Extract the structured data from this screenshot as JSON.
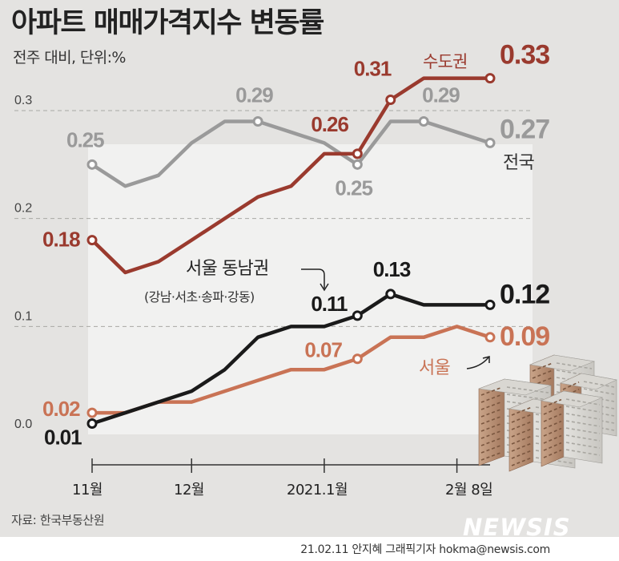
{
  "header": {
    "title_light_a": "아파트 ",
    "title_bold": "매매가격지수",
    "title_light_b": " 변동률",
    "subtitle": "전주 대비, 단위:%"
  },
  "footer": {
    "source": "자료: 한국부동산원",
    "credit": "21.02.11 안지혜 그래픽기자 hokma@newsis.com",
    "watermark": "NEWSIS"
  },
  "colors": {
    "capital": "#9a3a2e",
    "nation": "#9a9a9a",
    "gangnam": "#1a1a1a",
    "seoul": "#c97355",
    "background": "#e4e3e1",
    "plot_area": "#f1f1f0"
  },
  "chart_data": {
    "type": "line",
    "title": "아파트 매매가격지수 변동률",
    "subtitle": "전주 대비, 단위:%",
    "ylim": [
      0,
      0.3
    ],
    "yticks": [
      "0.0",
      "0.1",
      "0.2",
      "0.3"
    ],
    "grid": true,
    "x_tick_labels": [
      {
        "index": 0,
        "label": "11월"
      },
      {
        "index": 3,
        "label": "12월"
      },
      {
        "index": 7,
        "label": "2021.1월"
      },
      {
        "index": 11,
        "label": "2월 8일"
      }
    ],
    "n_points": 13,
    "series": [
      {
        "name": "수도권",
        "color": "#9a3a2e",
        "values": [
          0.18,
          0.15,
          0.16,
          0.18,
          0.2,
          0.22,
          0.23,
          0.26,
          0.26,
          0.31,
          0.33,
          0.33,
          0.33
        ],
        "labels": [
          {
            "index": 0,
            "text": "0.18"
          },
          {
            "index": 8,
            "text": "0.26"
          },
          {
            "index": 9,
            "text": "0.31"
          },
          {
            "index": 12,
            "text": "0.33"
          }
        ],
        "markers": [
          0,
          8,
          9,
          12
        ]
      },
      {
        "name": "전국",
        "color": "#9a9a9a",
        "values": [
          0.25,
          0.23,
          0.24,
          0.27,
          0.29,
          0.29,
          0.28,
          0.27,
          0.25,
          0.29,
          0.29,
          0.28,
          0.27
        ],
        "labels": [
          {
            "index": 0,
            "text": "0.25"
          },
          {
            "index": 5,
            "text": "0.29"
          },
          {
            "index": 8,
            "text": "0.25"
          },
          {
            "index": 10,
            "text": "0.29"
          },
          {
            "index": 12,
            "text": "0.27"
          }
        ],
        "markers": [
          0,
          5,
          8,
          10,
          12
        ]
      },
      {
        "name": "서울 동남권",
        "note": "(강남·서초·송파·강동)",
        "color": "#1a1a1a",
        "values": [
          0.01,
          0.02,
          0.03,
          0.04,
          0.06,
          0.09,
          0.1,
          0.1,
          0.11,
          0.13,
          0.12,
          0.12,
          0.12
        ],
        "labels": [
          {
            "index": 0,
            "text": "0.01"
          },
          {
            "index": 8,
            "text": "0.11"
          },
          {
            "index": 9,
            "text": "0.13"
          },
          {
            "index": 12,
            "text": "0.12"
          }
        ],
        "markers": [
          0,
          8,
          9,
          12
        ]
      },
      {
        "name": "서울",
        "color": "#c97355",
        "values": [
          0.02,
          0.02,
          0.03,
          0.03,
          0.04,
          0.05,
          0.06,
          0.06,
          0.07,
          0.09,
          0.09,
          0.1,
          0.09
        ],
        "labels": [
          {
            "index": 0,
            "text": "0.02"
          },
          {
            "index": 8,
            "text": "0.07"
          },
          {
            "index": 12,
            "text": "0.09"
          }
        ],
        "markers": [
          0,
          8,
          12
        ]
      }
    ]
  }
}
